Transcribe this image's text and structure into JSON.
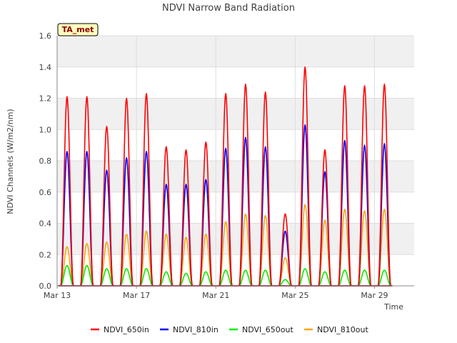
{
  "chart_data": {
    "type": "line",
    "title": "NDVI Narrow Band Radiation",
    "xlabel": "Time",
    "ylabel": "NDVI Channels (W/m2/nm)",
    "badge": "TA_met",
    "ylim": [
      0,
      1.6
    ],
    "yticks": [
      "0.0",
      "0.2",
      "0.4",
      "0.6",
      "0.8",
      "1.0",
      "1.2",
      "1.4",
      "1.6"
    ],
    "xlim_days": [
      13,
      31
    ],
    "xticks": [
      {
        "day": 13,
        "label": "Mar 13"
      },
      {
        "day": 17,
        "label": "Mar 17"
      },
      {
        "day": 21,
        "label": "Mar 21"
      },
      {
        "day": 25,
        "label": "Mar 25"
      },
      {
        "day": 29,
        "label": "Mar 29"
      }
    ],
    "grid": true,
    "legend_placement": "bottom",
    "x_unit": "day of March (daily midday peak)",
    "x": [
      13.5,
      14.5,
      15.5,
      16.5,
      17.5,
      18.5,
      19.5,
      20.5,
      21.5,
      22.5,
      23.5,
      24.5,
      25.5,
      26.5,
      27.5,
      28.5,
      29.5
    ],
    "series": [
      {
        "name": "NDVI_650in",
        "color": "#ff0000",
        "values": [
          1.21,
          1.21,
          1.02,
          1.2,
          1.23,
          0.89,
          0.87,
          0.92,
          1.23,
          1.29,
          1.24,
          0.46,
          1.4,
          0.87,
          1.28,
          1.28,
          1.29
        ]
      },
      {
        "name": "NDVI_810in",
        "color": "#0000ff",
        "values": [
          0.86,
          0.86,
          0.74,
          0.82,
          0.86,
          0.65,
          0.65,
          0.68,
          0.88,
          0.95,
          0.89,
          0.35,
          1.03,
          0.73,
          0.93,
          0.9,
          0.91
        ]
      },
      {
        "name": "NDVI_650out",
        "color": "#00ee00",
        "values": [
          0.13,
          0.13,
          0.11,
          0.11,
          0.11,
          0.09,
          0.08,
          0.09,
          0.1,
          0.1,
          0.1,
          0.04,
          0.11,
          0.09,
          0.1,
          0.1,
          0.1
        ]
      },
      {
        "name": "NDVI_810out",
        "color": "#ffa500",
        "values": [
          0.25,
          0.27,
          0.28,
          0.33,
          0.35,
          0.33,
          0.31,
          0.33,
          0.41,
          0.46,
          0.45,
          0.18,
          0.52,
          0.42,
          0.49,
          0.48,
          0.49
        ]
      }
    ]
  }
}
